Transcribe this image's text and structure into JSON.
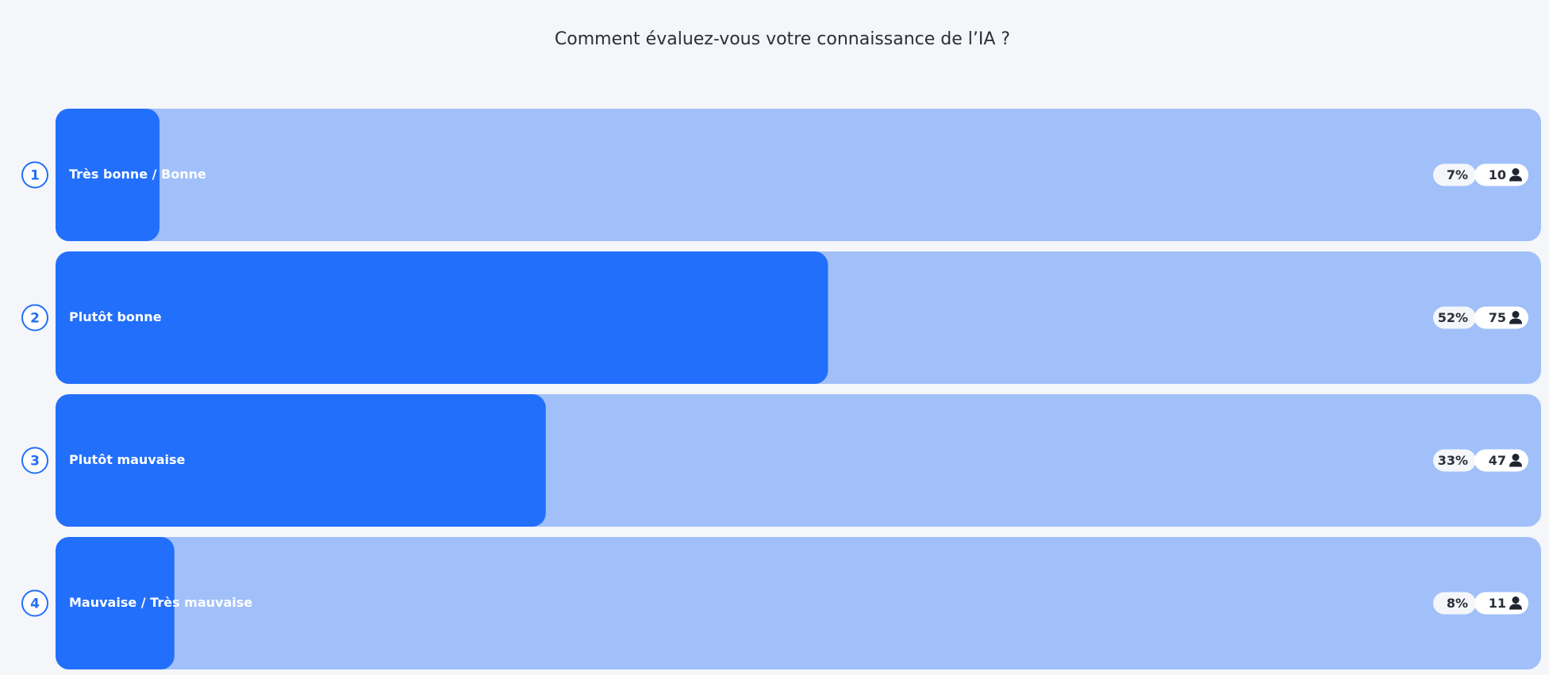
{
  "chart_data": {
    "type": "bar",
    "orientation": "horizontal",
    "title": "Comment évaluez-vous votre connaissance de l’IA ?",
    "ranks": [
      1,
      2,
      3,
      4
    ],
    "categories": [
      "Très bonne / Bonne",
      "Plutôt bonne",
      "Plutôt mauvaise",
      "Mauvaise / Très mauvaise"
    ],
    "values": [
      7,
      52,
      33,
      8
    ],
    "value_labels": [
      "7%",
      "52%",
      "33%",
      "8%"
    ],
    "counts": [
      10,
      75,
      47,
      11
    ],
    "xlim": [
      0,
      100
    ],
    "color": "#226ffb",
    "track_color": "#a1c0f9"
  }
}
